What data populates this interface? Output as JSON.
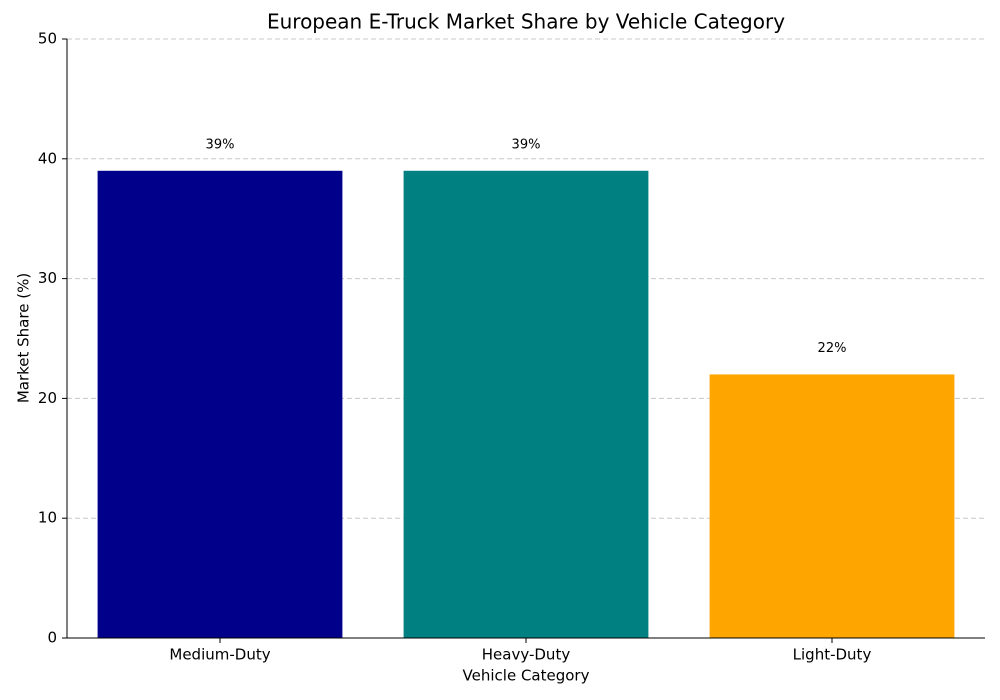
{
  "chart_data": {
    "type": "bar",
    "title": "European E-Truck Market Share by Vehicle Category",
    "x_label": "Vehicle Category",
    "y_label": "Market Share (%)",
    "categories": [
      "Medium-Duty",
      "Heavy-Duty",
      "Light-Duty"
    ],
    "values": [
      39,
      39,
      22
    ],
    "value_labels": [
      "39%",
      "39%",
      "22%"
    ],
    "colors": [
      "#00008b",
      "#008080",
      "#ffa500"
    ],
    "ylim": [
      0,
      50
    ],
    "yticks": [
      0,
      10,
      20,
      30,
      40,
      50
    ],
    "grid": true
  }
}
